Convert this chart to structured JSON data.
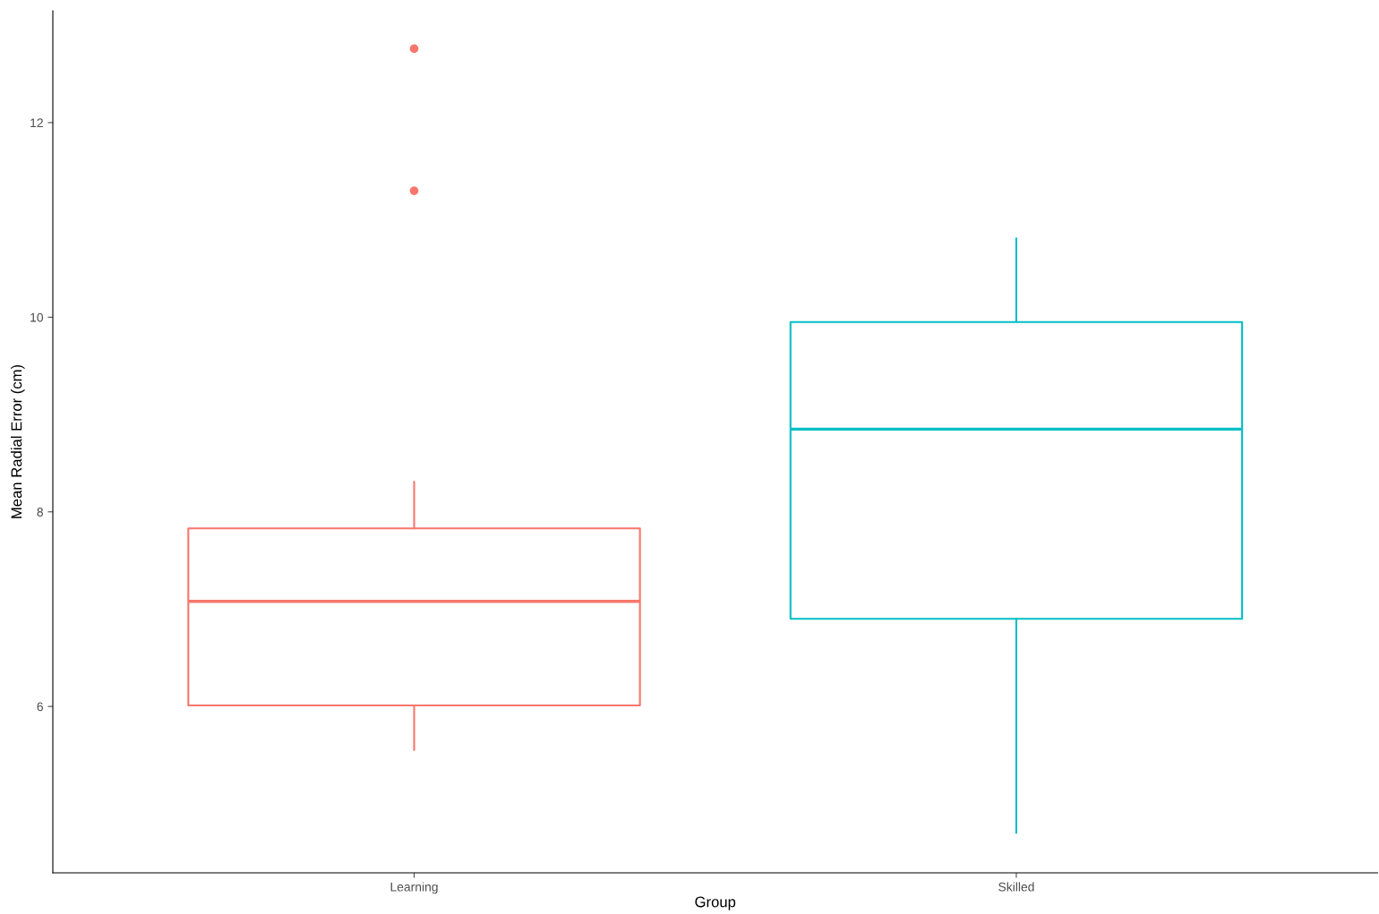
{
  "chart_data": {
    "type": "box",
    "xlabel": "Group",
    "ylabel": "Mean Radial Error (cm)",
    "categories": [
      "Learning",
      "Skilled"
    ],
    "colors": [
      "#f8766d",
      "#00bfc4"
    ],
    "boxes": [
      {
        "low": 5.55,
        "q1": 6.01,
        "median": 7.08,
        "q3": 7.83,
        "high": 8.31,
        "outliers": [
          11.3,
          12.76
        ]
      },
      {
        "low": 4.7,
        "q1": 6.9,
        "median": 8.85,
        "q3": 9.95,
        "high": 10.81
      }
    ],
    "ylim": [
      4.29,
      13.15
    ],
    "yticks": [
      6,
      8,
      10,
      12
    ],
    "grid": false,
    "legend": false
  }
}
